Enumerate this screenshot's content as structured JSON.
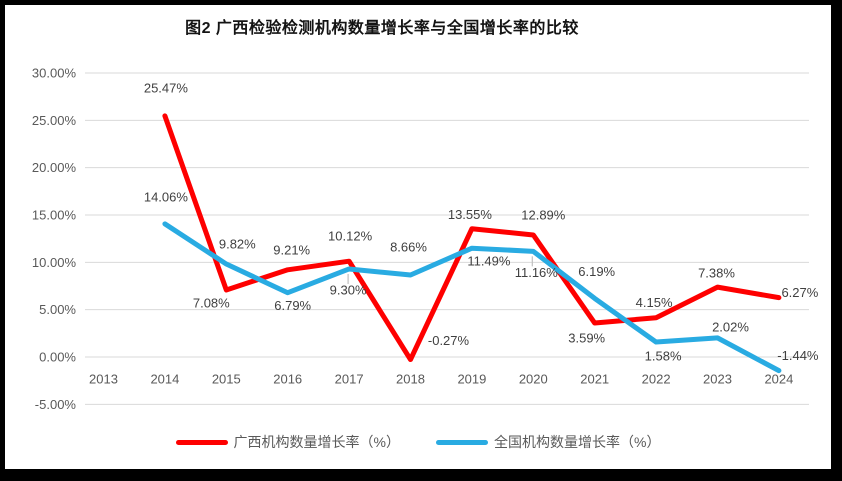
{
  "frame": {
    "border_color": "#000000",
    "panel_background": "#FFFFFF"
  },
  "chart_data": {
    "type": "line",
    "title": "图2 广西检验检测机构数量增长率与全国增长率的比较",
    "x": [
      "2013",
      "2014",
      "2015",
      "2016",
      "2017",
      "2018",
      "2019",
      "2020",
      "2021",
      "2022",
      "2023",
      "2024"
    ],
    "series": [
      {
        "name": "广西机构数量增长率（%）",
        "color": "#FE0000",
        "values": [
          null,
          25.47,
          7.08,
          9.21,
          10.12,
          -0.27,
          13.55,
          12.89,
          3.59,
          4.15,
          7.38,
          6.27
        ],
        "labels": [
          null,
          "25.47%",
          "7.08%",
          "9.21%",
          "10.12%",
          "-0.27%",
          "13.55%",
          "12.89%",
          "3.59%",
          "4.15%",
          "7.38%",
          "6.27%"
        ],
        "label_offsets": [
          null,
          [
            1,
            -28
          ],
          [
            -15,
            13
          ],
          [
            4,
            -20
          ],
          [
            1,
            -25
          ],
          [
            38,
            -19
          ],
          [
            -2,
            -14
          ],
          [
            10,
            -20
          ],
          [
            -8,
            15
          ],
          [
            -2,
            -15
          ],
          [
            -1,
            -14
          ],
          [
            21,
            -5
          ]
        ]
      },
      {
        "name": "全国机构数量增长率（%）",
        "color": "#29ABE2",
        "values": [
          null,
          14.06,
          9.82,
          6.79,
          9.3,
          8.66,
          11.49,
          11.16,
          6.19,
          1.58,
          2.02,
          -1.44
        ],
        "labels": [
          null,
          "14.06%",
          "9.82%",
          "6.79%",
          "9.30%",
          "8.66%",
          "11.49%",
          "11.16%",
          "6.19%",
          "1.58%",
          "2.02%",
          "-1.44%"
        ],
        "label_offsets": [
          null,
          [
            1,
            -27
          ],
          [
            11,
            -20
          ],
          [
            5,
            13
          ],
          [
            -1,
            21
          ],
          [
            -2,
            -28
          ],
          [
            17,
            13
          ],
          [
            3,
            21
          ],
          [
            2,
            -27
          ],
          [
            7,
            14
          ],
          [
            13,
            -11
          ],
          [
            19,
            -15
          ]
        ]
      }
    ],
    "ylim": [
      -5,
      30
    ],
    "ytick_step": 5,
    "ytick_labels": [
      "30.00%",
      "25.00%",
      "20.00%",
      "15.00%",
      "10.00%",
      "5.00%",
      "0.00%",
      "-5.00%"
    ],
    "grid": true,
    "legend_position": "bottom",
    "leader_lines": [
      {
        "series": 1,
        "index": 4
      },
      {
        "series": 1,
        "index": 7
      }
    ],
    "colors": {
      "gridline": "#D9D9D9",
      "axis_text": "#595959",
      "data_label_text": "#404040",
      "leader": "#BFBFBF"
    }
  }
}
